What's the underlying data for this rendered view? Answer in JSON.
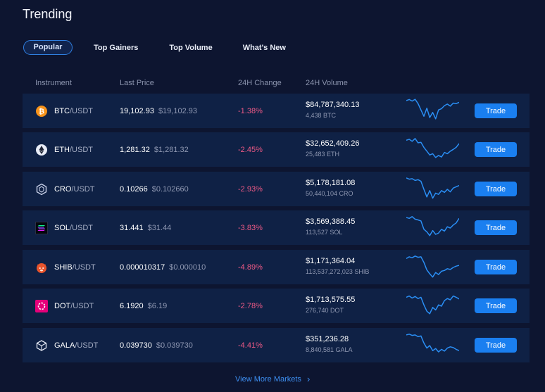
{
  "header": {
    "title": "Trending"
  },
  "tabs": [
    {
      "label": "Popular",
      "active": true
    },
    {
      "label": "Top Gainers",
      "active": false
    },
    {
      "label": "Top Volume",
      "active": false
    },
    {
      "label": "What's New",
      "active": false
    }
  ],
  "table": {
    "columns": [
      "Instrument",
      "Last Price",
      "24H Change",
      "24H Volume"
    ],
    "rows": [
      {
        "base": "BTC",
        "quote": "/USDT",
        "icon": "btc-icon",
        "price": "19,102.93",
        "fiat": "$19,102.93",
        "change": "-1.38%",
        "vol_usd": "$84,787,340.13",
        "vol_base": "4,438 BTC",
        "trade_label": "Trade",
        "spark": [
          0.92,
          0.96,
          0.9,
          0.97,
          0.8,
          0.55,
          0.3,
          0.62,
          0.25,
          0.45,
          0.2,
          0.55,
          0.6,
          0.72,
          0.78,
          0.7,
          0.82,
          0.8,
          0.85
        ],
        "icon_color": "#f7931a"
      },
      {
        "base": "ETH",
        "quote": "/USDT",
        "icon": "eth-icon",
        "price": "1,281.32",
        "fiat": "$1,281.32",
        "change": "-2.45%",
        "vol_usd": "$32,652,409.26",
        "vol_base": "25,483 ETH",
        "trade_label": "Trade",
        "spark": [
          0.88,
          0.92,
          0.84,
          0.95,
          0.78,
          0.8,
          0.6,
          0.45,
          0.3,
          0.35,
          0.2,
          0.28,
          0.22,
          0.4,
          0.35,
          0.45,
          0.52,
          0.6,
          0.75
        ],
        "icon_color": "#e8ecf6"
      },
      {
        "base": "CRO",
        "quote": "/USDT",
        "icon": "cro-icon",
        "price": "0.10266",
        "fiat": "$0.102660",
        "change": "-2.93%",
        "vol_usd": "$5,178,181.08",
        "vol_base": "50,440,104 CRO",
        "trade_label": "Trade",
        "spark": [
          0.95,
          0.9,
          0.92,
          0.85,
          0.88,
          0.82,
          0.5,
          0.2,
          0.45,
          0.15,
          0.35,
          0.3,
          0.45,
          0.38,
          0.5,
          0.4,
          0.55,
          0.6,
          0.65
        ],
        "icon_color": "#c8d0e8"
      },
      {
        "base": "SOL",
        "quote": "/USDT",
        "icon": "sol-icon",
        "price": "31.441",
        "fiat": "$31.44",
        "change": "-3.83%",
        "vol_usd": "$3,569,388.45",
        "vol_base": "113,527 SOL",
        "trade_label": "Trade",
        "spark": [
          0.92,
          0.88,
          0.95,
          0.85,
          0.82,
          0.78,
          0.45,
          0.35,
          0.2,
          0.4,
          0.25,
          0.3,
          0.45,
          0.38,
          0.55,
          0.5,
          0.62,
          0.7,
          0.88
        ],
        "icon_color": "#9945ff"
      },
      {
        "base": "SHIB",
        "quote": "/USDT",
        "icon": "shib-icon",
        "price": "0.000010317",
        "fiat": "$0.000010",
        "change": "-4.89%",
        "vol_usd": "$1,171,364.04",
        "vol_base": "113,537,272,023 SHIB",
        "trade_label": "Trade",
        "spark": [
          0.85,
          0.92,
          0.88,
          0.95,
          0.9,
          0.92,
          0.7,
          0.4,
          0.25,
          0.12,
          0.3,
          0.22,
          0.35,
          0.38,
          0.45,
          0.42,
          0.5,
          0.55,
          0.58
        ],
        "icon_color": "#e8542c"
      },
      {
        "base": "DOT",
        "quote": "/USDT",
        "icon": "dot-icon",
        "price": "6.1920",
        "fiat": "$6.19",
        "change": "-2.78%",
        "vol_usd": "$1,713,575.55",
        "vol_base": "276,740 DOT",
        "trade_label": "Trade",
        "spark": [
          0.85,
          0.9,
          0.82,
          0.88,
          0.8,
          0.85,
          0.55,
          0.3,
          0.2,
          0.45,
          0.35,
          0.55,
          0.5,
          0.72,
          0.8,
          0.75,
          0.9,
          0.85,
          0.78
        ],
        "icon_color": "#e6007a"
      },
      {
        "base": "GALA",
        "quote": "/USDT",
        "icon": "gala-icon",
        "price": "0.039730",
        "fiat": "$0.039730",
        "change": "-4.41%",
        "vol_usd": "$351,236.28",
        "vol_base": "8,840,581 GALA",
        "trade_label": "Trade",
        "spark": [
          0.92,
          0.95,
          0.9,
          0.92,
          0.85,
          0.88,
          0.6,
          0.4,
          0.5,
          0.3,
          0.38,
          0.25,
          0.35,
          0.28,
          0.4,
          0.45,
          0.42,
          0.35,
          0.3
        ],
        "icon_color": "#e8ecf6"
      }
    ]
  },
  "footer": {
    "more_label": "View More Markets",
    "more_icon": "chevron-right-icon"
  },
  "colors": {
    "background": "#0d1530",
    "row": "#0f2145",
    "accent": "#1a7ff0",
    "negative": "#f05a86",
    "spark": "#2a8ef4"
  }
}
